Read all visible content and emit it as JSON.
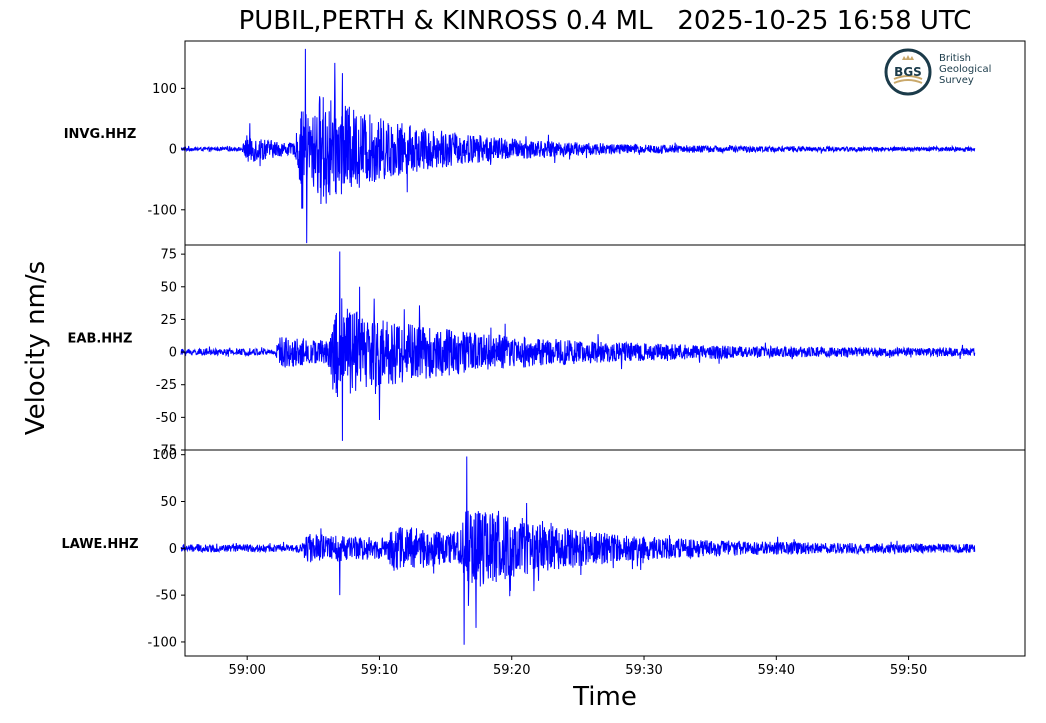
{
  "title": "PUBIL,PERTH & KINROSS 0.4 ML   2025-10-25 16:58 UTC",
  "ylabel": "Velocity nm/s",
  "xlabel": "Time",
  "logo": {
    "abbr": "BGS",
    "line1": "British",
    "line2": "Geological",
    "line3": "Survey"
  },
  "chart_data": {
    "type": "line",
    "x_ticks": [
      {
        "t": 60,
        "label": "59:00"
      },
      {
        "t": 70,
        "label": "59:10"
      },
      {
        "t": 80,
        "label": "59:20"
      },
      {
        "t": 90,
        "label": "59:30"
      },
      {
        "t": 100,
        "label": "59:40"
      },
      {
        "t": 110,
        "label": "59:50"
      }
    ],
    "xlim": [
      55.3,
      118.8
    ],
    "trace_start": 55,
    "trace_end": 115,
    "series_color": "#0000ff",
    "panels": [
      {
        "station": "INVG.HHZ",
        "ylim": [
          -158,
          178
        ],
        "yticks": [
          {
            "v": 100,
            "label": "100"
          },
          {
            "v": 0,
            "label": "0"
          },
          {
            "v": -100,
            "label": "-100"
          }
        ],
        "noise": 3,
        "events": [
          {
            "t": 60.0,
            "amp": 22,
            "decay": 3
          },
          {
            "t": 64.0,
            "amp": 55,
            "decay": 10
          },
          {
            "t": 65.5,
            "amp": 40,
            "decay": 6
          }
        ],
        "spikes": [
          {
            "t": 64.4,
            "v": 165
          },
          {
            "t": 64.5,
            "v": -155
          },
          {
            "t": 67.2,
            "v": 125
          },
          {
            "t": 64.2,
            "v": -98
          }
        ]
      },
      {
        "station": "EAB.HHZ",
        "ylim": [
          -75,
          82
        ],
        "yticks": [
          {
            "v": 75,
            "label": "75"
          },
          {
            "v": 50,
            "label": "50"
          },
          {
            "v": 25,
            "label": "25"
          },
          {
            "v": 0,
            "label": "0"
          },
          {
            "v": -25,
            "label": "-25"
          },
          {
            "v": -50,
            "label": "-50"
          },
          {
            "v": -75,
            "label": "-75"
          }
        ],
        "noise": 2.5,
        "events": [
          {
            "t": 62.5,
            "amp": 10,
            "decay": 8
          },
          {
            "t": 66.5,
            "amp": 28,
            "decay": 12
          }
        ],
        "spikes": [
          {
            "t": 67.0,
            "v": 77
          },
          {
            "t": 67.2,
            "v": -68
          },
          {
            "t": 70.0,
            "v": -52
          },
          {
            "t": 68.5,
            "v": 50
          }
        ]
      },
      {
        "station": "LAWE.HHZ",
        "ylim": [
          -115,
          105
        ],
        "yticks": [
          {
            "v": 100,
            "label": "100"
          },
          {
            "v": 50,
            "label": "50"
          },
          {
            "v": 0,
            "label": "0"
          },
          {
            "v": -50,
            "label": "-50"
          },
          {
            "v": -100,
            "label": "-100"
          }
        ],
        "noise": 4,
        "events": [
          {
            "t": 64.5,
            "amp": 12,
            "decay": 12
          },
          {
            "t": 71.0,
            "amp": 14,
            "decay": 10
          },
          {
            "t": 76.5,
            "amp": 30,
            "decay": 8
          }
        ],
        "spikes": [
          {
            "t": 67.0,
            "v": 52
          },
          {
            "t": 67.0,
            "v": -50
          },
          {
            "t": 76.6,
            "v": 98
          },
          {
            "t": 76.4,
            "v": -103
          },
          {
            "t": 77.3,
            "v": -85
          },
          {
            "t": 79.0,
            "v": 40
          }
        ]
      }
    ]
  }
}
